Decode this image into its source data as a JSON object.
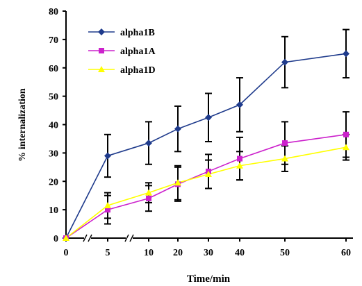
{
  "chart_data": {
    "type": "line",
    "xlabel": "Time/min",
    "ylabel": "% internalization",
    "x_ticks": [
      "0",
      "5",
      "10",
      "20",
      "30",
      "40",
      "50",
      "60"
    ],
    "y_ticks": [
      "0",
      "10",
      "20",
      "30",
      "40",
      "50",
      "60",
      "70",
      "80"
    ],
    "ylim": [
      0,
      80
    ],
    "axis_breaks": [
      "between 0 and 5",
      "between 5 and 10"
    ],
    "grid": false,
    "legend_position": "top-left",
    "series": [
      {
        "name": "alpha1B",
        "color": "#1f3b8c",
        "marker": "diamond",
        "x": [
          "0",
          "5",
          "10",
          "20",
          "30",
          "40",
          "50",
          "60"
        ],
        "values": [
          0,
          29,
          33.5,
          38.5,
          42.5,
          47,
          62,
          65
        ],
        "error": [
          0,
          7.5,
          7.5,
          8,
          8.5,
          9.5,
          9,
          8.5
        ]
      },
      {
        "name": "alpha1A",
        "color": "#cc22cc",
        "marker": "square",
        "x": [
          "0",
          "5",
          "10",
          "20",
          "30",
          "40",
          "50",
          "60"
        ],
        "values": [
          0,
          10,
          14,
          19,
          23.5,
          28,
          33.5,
          36.5
        ],
        "error": [
          0,
          5,
          4.5,
          6,
          6,
          7.5,
          7.5,
          8
        ]
      },
      {
        "name": "alpha1D",
        "color": "#ffff00",
        "marker": "triangle",
        "x": [
          "0",
          "5",
          "10",
          "20",
          "30",
          "40",
          "50",
          "60"
        ],
        "values": [
          0,
          11.5,
          16,
          19.5,
          22.5,
          25.5,
          28,
          32
        ],
        "error": [
          0,
          4.5,
          3.5,
          6,
          5,
          5,
          4.5,
          4.5
        ]
      }
    ]
  }
}
